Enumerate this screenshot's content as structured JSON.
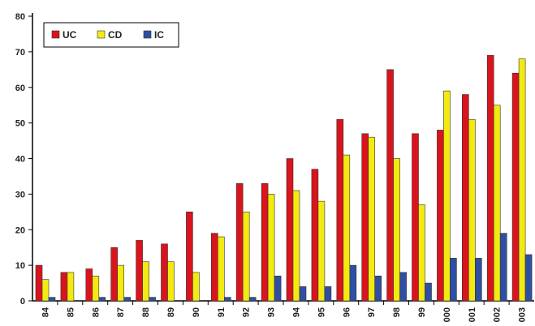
{
  "chart_data": {
    "type": "bar",
    "categories": [
      "84",
      "85",
      "86",
      "87",
      "88",
      "89",
      "90",
      "91",
      "92",
      "93",
      "94",
      "95",
      "96",
      "97",
      "98",
      "99",
      "000",
      "001",
      "002",
      "003"
    ],
    "series": [
      {
        "name": "UC",
        "color": "#d9141c",
        "values": [
          10,
          8,
          9,
          15,
          17,
          16,
          25,
          19,
          33,
          33,
          40,
          37,
          51,
          47,
          65,
          47,
          48,
          58,
          69,
          64
        ]
      },
      {
        "name": "CD",
        "color": "#f2ea10",
        "values": [
          6,
          8,
          7,
          10,
          11,
          11,
          8,
          18,
          25,
          30,
          31,
          28,
          41,
          46,
          40,
          27,
          59,
          51,
          55,
          68
        ]
      },
      {
        "name": "IC",
        "color": "#2e4fa3",
        "values": [
          1,
          0,
          1,
          1,
          1,
          0,
          0,
          1,
          1,
          7,
          4,
          4,
          10,
          7,
          8,
          5,
          12,
          12,
          19,
          13
        ]
      }
    ],
    "ylim": [
      0,
      80
    ],
    "yticks": [
      0,
      10,
      20,
      30,
      40,
      50,
      60,
      70,
      80
    ],
    "grid": false,
    "legend_position": "top-left",
    "title": "",
    "xlabel": "",
    "ylabel": ""
  }
}
